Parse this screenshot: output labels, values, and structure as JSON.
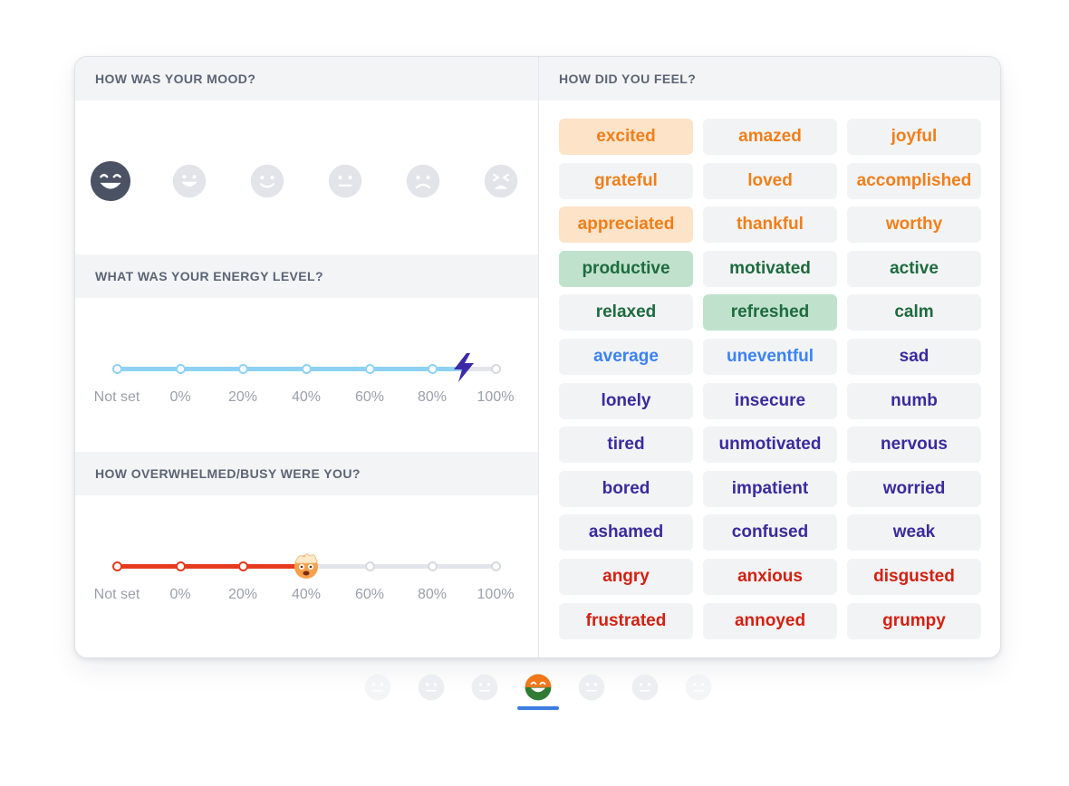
{
  "mood": {
    "title": "HOW WAS YOUR MOOD?",
    "faces": [
      "big-grin-icon",
      "grin-icon",
      "smile-icon",
      "neutral-icon",
      "frown-icon",
      "distressed-icon"
    ],
    "selected_index": 0
  },
  "energy": {
    "title": "WHAT WAS YOUR ENERGY LEVEL?",
    "ticks": [
      "Not set",
      "0%",
      "20%",
      "40%",
      "60%",
      "80%",
      "100%"
    ],
    "value_percent": 90,
    "color": "#8fd1f5",
    "thumb_icon": "lightning-bolt-icon"
  },
  "busy": {
    "title": "HOW OVERWHELMED/BUSY WERE YOU?",
    "ticks": [
      "Not set",
      "0%",
      "20%",
      "40%",
      "60%",
      "80%",
      "100%"
    ],
    "value_percent": 40,
    "color": "#e53a1e",
    "thumb_icon": "exploding-head-icon"
  },
  "feelings": {
    "title": "HOW DID YOU FEEL?",
    "rows": [
      [
        {
          "label": "excited",
          "tone": "orange",
          "selected": true
        },
        {
          "label": "amazed",
          "tone": "orange",
          "selected": false
        },
        {
          "label": "joyful",
          "tone": "orange",
          "selected": false
        }
      ],
      [
        {
          "label": "grateful",
          "tone": "orange",
          "selected": false
        },
        {
          "label": "loved",
          "tone": "orange",
          "selected": false
        },
        {
          "label": "accomplished",
          "tone": "orange",
          "selected": false
        }
      ],
      [
        {
          "label": "appreciated",
          "tone": "orange",
          "selected": true
        },
        {
          "label": "thankful",
          "tone": "orange",
          "selected": false
        },
        {
          "label": "worthy",
          "tone": "orange",
          "selected": false
        }
      ],
      [
        {
          "label": "productive",
          "tone": "green",
          "selected": true
        },
        {
          "label": "motivated",
          "tone": "green",
          "selected": false
        },
        {
          "label": "active",
          "tone": "green",
          "selected": false
        }
      ],
      [
        {
          "label": "relaxed",
          "tone": "green",
          "selected": false
        },
        {
          "label": "refreshed",
          "tone": "green",
          "selected": true
        },
        {
          "label": "calm",
          "tone": "green",
          "selected": false
        }
      ],
      [
        {
          "label": "average",
          "tone": "blue",
          "selected": false
        },
        {
          "label": "uneventful",
          "tone": "blue",
          "selected": false
        },
        {
          "label": "sad",
          "tone": "purple",
          "selected": false
        }
      ],
      [
        {
          "label": "lonely",
          "tone": "purple",
          "selected": false
        },
        {
          "label": "insecure",
          "tone": "purple",
          "selected": false
        },
        {
          "label": "numb",
          "tone": "purple",
          "selected": false
        }
      ],
      [
        {
          "label": "tired",
          "tone": "purple",
          "selected": false
        },
        {
          "label": "unmotivated",
          "tone": "purple",
          "selected": false
        },
        {
          "label": "nervous",
          "tone": "purple",
          "selected": false
        }
      ],
      [
        {
          "label": "bored",
          "tone": "purple",
          "selected": false
        },
        {
          "label": "impatient",
          "tone": "purple",
          "selected": false
        },
        {
          "label": "worried",
          "tone": "purple",
          "selected": false
        }
      ],
      [
        {
          "label": "ashamed",
          "tone": "purple",
          "selected": false
        },
        {
          "label": "confused",
          "tone": "purple",
          "selected": false
        },
        {
          "label": "weak",
          "tone": "purple",
          "selected": false
        }
      ],
      [
        {
          "label": "angry",
          "tone": "red",
          "selected": false
        },
        {
          "label": "anxious",
          "tone": "red",
          "selected": false
        },
        {
          "label": "disgusted",
          "tone": "red",
          "selected": false
        }
      ],
      [
        {
          "label": "frustrated",
          "tone": "red",
          "selected": false
        },
        {
          "label": "annoyed",
          "tone": "red",
          "selected": false
        },
        {
          "label": "grumpy",
          "tone": "red",
          "selected": false
        }
      ]
    ]
  },
  "tones": {
    "orange": {
      "text": "#f07f1a",
      "selected_bg": "#fde3c8"
    },
    "green": {
      "text": "#1e6b3e",
      "selected_bg": "#c0e2cd"
    },
    "blue": {
      "text": "#3b82f6",
      "selected_bg": "#dbe8fd"
    },
    "purple": {
      "text": "#3c2a9e",
      "selected_bg": "#ddd8f5"
    },
    "red": {
      "text": "#d42010",
      "selected_bg": "#f9d2cc"
    }
  },
  "bottom_nav": {
    "faces": [
      "neutral-face-icon",
      "neutral-face-icon",
      "neutral-face-icon",
      "colorful-grin-icon",
      "neutral-face-icon",
      "neutral-face-icon",
      "neutral-face-icon"
    ],
    "active_index": 3,
    "active_color": "#3b7de0"
  }
}
